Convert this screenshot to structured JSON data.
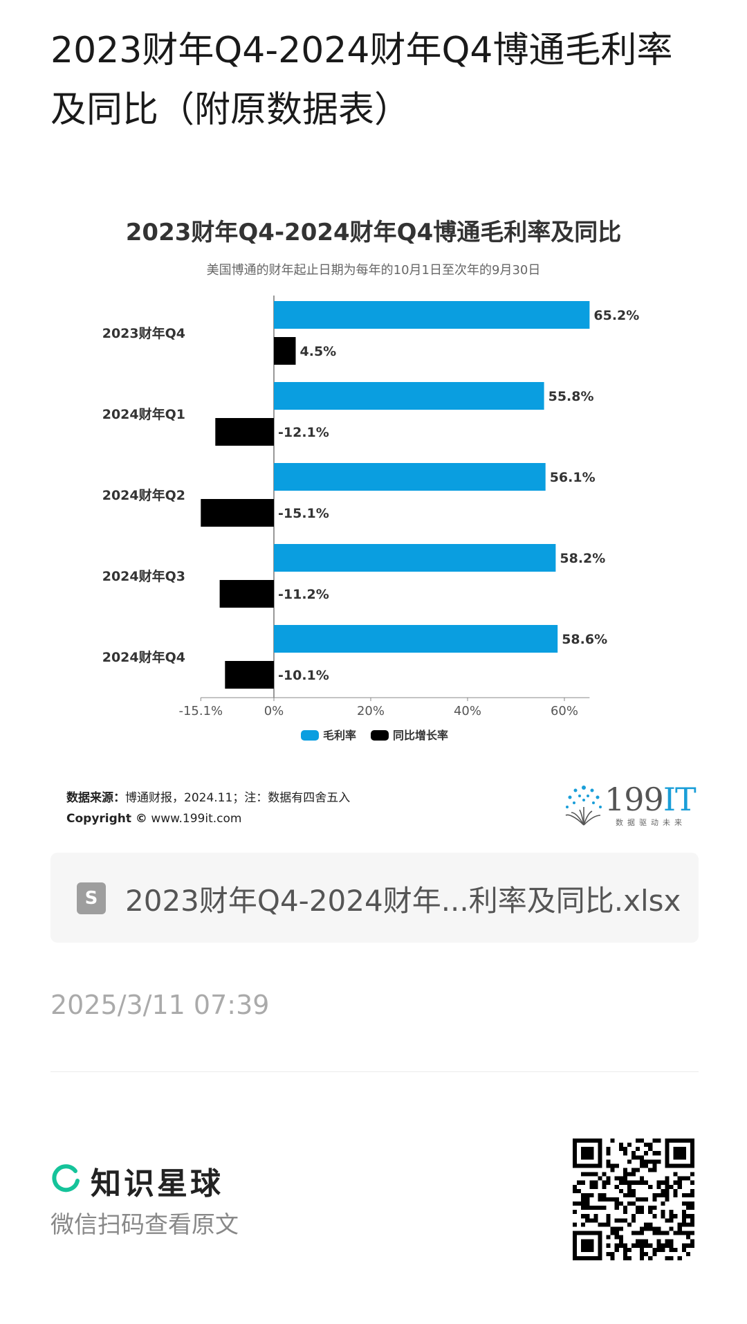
{
  "post": {
    "title": "2023财年Q4-2024财年Q4博通毛利率及同比（附原数据表）",
    "timestamp": "2025/3/11 07:39"
  },
  "chart_header": {
    "title": "2023财年Q4-2024财年Q4博通毛利率及同比",
    "subtitle": "美国博通的财年起止日期为每年的10月1日至次年的9月30日"
  },
  "chart_data": {
    "type": "bar",
    "orientation": "horizontal",
    "categories": [
      "2023财年Q4",
      "2024财年Q1",
      "2024财年Q2",
      "2024财年Q3",
      "2024财年Q4"
    ],
    "series": [
      {
        "name": "毛利率",
        "values": [
          65.2,
          55.8,
          56.1,
          58.2,
          58.6
        ],
        "labels": [
          "65.2%",
          "55.8%",
          "56.1%",
          "58.2%",
          "58.6%"
        ],
        "color": "#0a9ee0"
      },
      {
        "name": "同比增长率",
        "values": [
          4.5,
          -12.1,
          -15.1,
          -11.2,
          -10.1
        ],
        "labels": [
          "4.5%",
          "-12.1%",
          "-15.1%",
          "-11.2%",
          "-10.1%"
        ],
        "color": "#000000"
      }
    ],
    "xlim": [
      -15.1,
      65.2
    ],
    "xticks": [
      -15.1,
      0,
      20,
      40,
      60
    ],
    "xtick_labels": [
      "-15.1%",
      "0%",
      "20%",
      "40%",
      "60%"
    ],
    "legend_position": "bottom",
    "grid": false
  },
  "source": {
    "label": "数据来源：",
    "text": "博通财报，2024.11；注：数据有四舍五入",
    "copyright_label": "Copyright ©",
    "copyright_site": "www.199it.com"
  },
  "logo": {
    "main": "199",
    "accent": "IT",
    "tagline": "数据驱动未来"
  },
  "file": {
    "icon_letter": "S",
    "name": "2023财年Q4-2024财年...利率及同比.xlsx"
  },
  "footer": {
    "brand_name": "知识星球",
    "hint": "微信扫码查看原文"
  },
  "colors": {
    "accent": "#0a9ee0",
    "brand_green": "#15c39a"
  }
}
